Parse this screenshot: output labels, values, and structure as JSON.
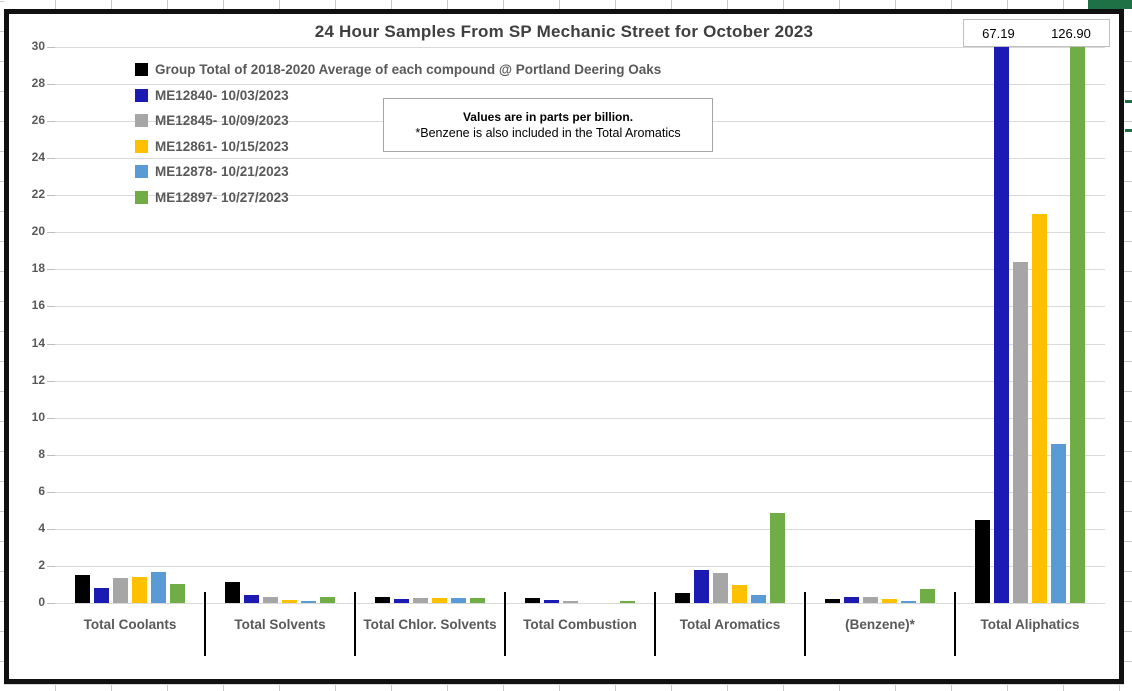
{
  "note": {
    "line1": "Values are in parts per billion.",
    "line2": "*Benzene is also included in the Total Aromatics"
  },
  "colors": {
    "sheet_accent_green": "#1E7145",
    "chart_border": "#111111",
    "gridline": "#d9d9d9",
    "text_gray": "#595959",
    "title_gray": "#3f3f3f"
  },
  "chart_data": {
    "type": "bar",
    "title": "24 Hour Samples From SP Mechanic Street for October 2023",
    "categories": [
      "Total Coolants",
      "Total Solvents",
      "Total Chlor. Solvents",
      "Total Combustion",
      "Total Aromatics",
      "(Benzene)*",
      "Total Aliphatics"
    ],
    "series": [
      {
        "name": "Group Total of 2018-2020 Average of each compound @ Portland Deering Oaks",
        "color": "#000000",
        "values": [
          1.5,
          1.15,
          0.35,
          0.25,
          0.55,
          0.2,
          4.5
        ]
      },
      {
        "name": "ME12840- 10/03/2023",
        "color": "#1B1BB3",
        "values": [
          0.8,
          0.45,
          0.2,
          0.15,
          1.8,
          0.3,
          67.19
        ]
      },
      {
        "name": "ME12845- 10/09/2023",
        "color": "#A6A6A6",
        "values": [
          1.35,
          0.3,
          0.25,
          0.1,
          1.6,
          0.3,
          18.4
        ]
      },
      {
        "name": "ME12861- 10/15/2023",
        "color": "#FFC000",
        "values": [
          1.4,
          0.15,
          0.25,
          0,
          0.95,
          0.2,
          21.0
        ]
      },
      {
        "name": "ME12878- 10/21/2023",
        "color": "#5B9BD5",
        "values": [
          1.65,
          0.1,
          0.25,
          0,
          0.45,
          0.1,
          8.6
        ]
      },
      {
        "name": "ME12897- 10/27/2023",
        "color": "#70AD47",
        "values": [
          1.05,
          0.3,
          0.25,
          0.1,
          4.85,
          0.75,
          126.9
        ]
      }
    ],
    "ylim": [
      0,
      30
    ],
    "ytick_step": 2,
    "yticks": [
      0,
      2,
      4,
      6,
      8,
      10,
      12,
      14,
      16,
      18,
      20,
      22,
      24,
      26,
      28,
      30
    ],
    "grid": true,
    "legend_position": "top-left",
    "offscale_values": [
      "67.19",
      "126.90"
    ],
    "offscale_note": "blue and green Total Aliphatics bars are clipped at y=30"
  }
}
